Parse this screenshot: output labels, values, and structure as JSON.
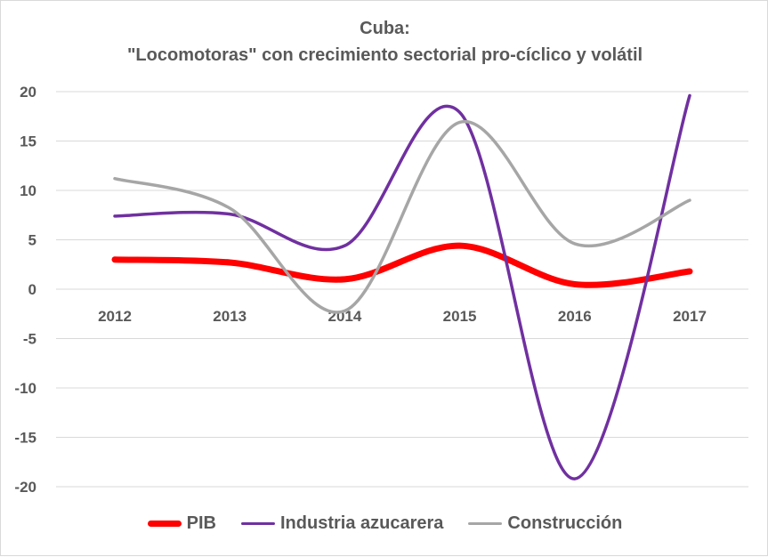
{
  "chart_data": {
    "type": "line",
    "title": "Cuba:",
    "subtitle": "\"Locomotoras\" con crecimiento sectorial pro-cíclico y volátil",
    "x": [
      "2012",
      "2013",
      "2014",
      "2015",
      "2016",
      "2017"
    ],
    "y_ticks": [
      "20",
      "15",
      "10",
      "5",
      "0",
      "-5",
      "-10",
      "-15",
      "-20"
    ],
    "ylim": [
      -20,
      20
    ],
    "grid": true,
    "legend_position": "bottom",
    "series": [
      {
        "name": "PIB",
        "color": "#ff0000",
        "values": [
          3.0,
          2.7,
          1.0,
          4.4,
          0.5,
          1.8
        ]
      },
      {
        "name": "Industria azucarera",
        "color": "#7030a0",
        "values": [
          7.4,
          7.6,
          4.4,
          17.9,
          -19.2,
          19.6
        ]
      },
      {
        "name": "Construcción",
        "color": "#a6a6a6",
        "values": [
          11.2,
          8.2,
          -2.2,
          16.9,
          4.6,
          9.0
        ]
      }
    ]
  }
}
